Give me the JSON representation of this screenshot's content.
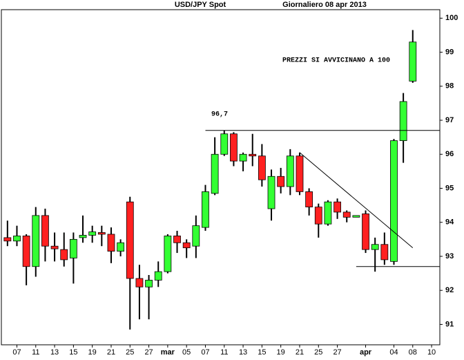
{
  "chart_data": {
    "type": "candlestick",
    "title": "USD/JPY Spot",
    "subtitle": "Giornaliero  08 apr 2013",
    "annotations": [
      "96,7",
      "PREZZI SI AVVICINANO A 100"
    ],
    "categories": [
      null,
      "07",
      null,
      "11",
      null,
      "13",
      null,
      "15",
      null,
      "19",
      null,
      "21",
      null,
      "25",
      null,
      "27",
      null,
      "mar",
      null,
      "05",
      null,
      "07",
      null,
      "11",
      null,
      "13",
      null,
      "15",
      null,
      "19",
      null,
      "21",
      null,
      "25",
      null,
      "27",
      null,
      null,
      "apr",
      null,
      null,
      "04",
      null,
      "08",
      null,
      "10"
    ],
    "series": [
      {
        "name": "USD/JPY",
        "up_color": "#33ff33",
        "down_color": "#ff2020",
        "open": [
          93.55,
          93.45,
          93.6,
          92.7,
          94.2,
          93.3,
          93.2,
          92.95,
          93.55,
          93.62,
          93.7,
          93.65,
          93.15,
          94.6,
          92.35,
          92.1,
          92.3,
          92.55,
          93.6,
          93.4,
          93.3,
          93.85,
          94.85,
          96.0,
          96.6,
          95.8,
          96.0,
          95.95,
          94.4,
          95.35,
          95.05,
          95.95,
          94.9,
          94.45,
          93.95,
          94.6,
          94.3,
          94.15,
          94.25,
          93.2,
          93.35,
          92.85,
          96.4,
          98.15,
          null,
          null
        ],
        "high": [
          94.05,
          93.9,
          93.65,
          94.45,
          94.4,
          93.7,
          93.7,
          93.7,
          94.2,
          93.9,
          93.9,
          93.85,
          93.5,
          94.75,
          92.75,
          92.45,
          92.85,
          93.65,
          93.75,
          93.5,
          94.2,
          95.1,
          96.5,
          96.7,
          96.65,
          96.05,
          96.6,
          96.3,
          95.55,
          95.6,
          96.15,
          96.05,
          95.0,
          94.55,
          94.65,
          94.7,
          94.35,
          94.2,
          94.35,
          93.55,
          93.7,
          96.45,
          97.8,
          99.65,
          null,
          null
        ],
        "low": [
          93.3,
          93.3,
          92.15,
          92.4,
          92.85,
          92.85,
          92.7,
          92.2,
          93.4,
          93.4,
          93.3,
          92.8,
          93.0,
          90.85,
          91.15,
          91.15,
          92.1,
          92.5,
          93.1,
          92.95,
          92.95,
          93.75,
          94.8,
          95.95,
          95.65,
          95.5,
          95.65,
          95.05,
          94.05,
          94.85,
          94.8,
          94.8,
          94.2,
          93.55,
          93.9,
          94.1,
          94.0,
          94.15,
          93.1,
          92.55,
          92.75,
          92.75,
          95.75,
          98.1,
          null,
          null
        ],
        "close": [
          93.45,
          93.6,
          92.7,
          94.2,
          93.3,
          93.22,
          92.9,
          93.5,
          93.62,
          93.72,
          93.65,
          93.15,
          93.4,
          92.35,
          92.1,
          92.3,
          92.55,
          93.6,
          93.4,
          93.25,
          93.9,
          94.9,
          96.0,
          96.6,
          95.8,
          96.0,
          95.95,
          95.25,
          95.35,
          95.05,
          95.95,
          94.9,
          94.45,
          93.95,
          94.6,
          94.3,
          94.15,
          94.2,
          93.2,
          93.35,
          92.9,
          96.4,
          97.55,
          99.3,
          null,
          null
        ]
      }
    ],
    "hlines": [
      96.7,
      92.7
    ],
    "trendline": [
      96.05,
      93.25
    ],
    "ylim": [
      90.4,
      100.25
    ],
    "yticks": [
      91,
      92,
      93,
      94,
      95,
      96,
      97,
      98,
      99,
      100
    ]
  }
}
